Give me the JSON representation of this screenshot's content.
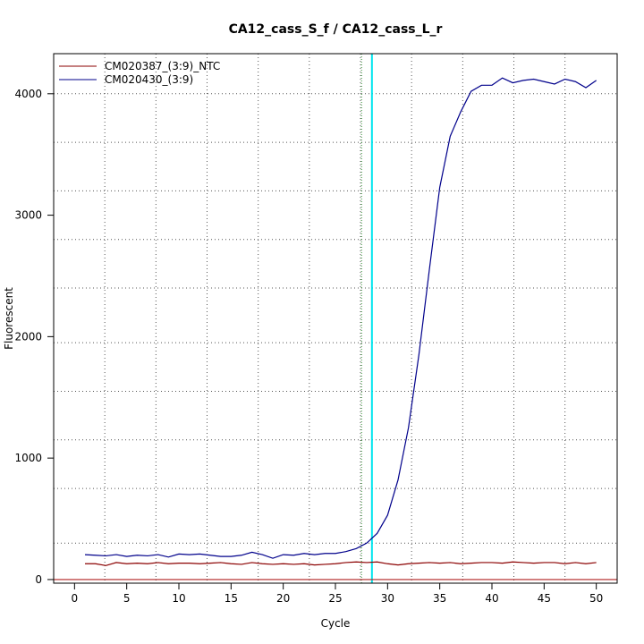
{
  "chart_data": {
    "type": "line",
    "title": "CA12_cass_S_f / CA12_cass_L_r",
    "xlabel": "Cycle",
    "ylabel": "Fluorescent",
    "xlim": [
      -2,
      52
    ],
    "ylim": [
      -30,
      4330
    ],
    "x_ticks": [
      0,
      5,
      10,
      15,
      20,
      25,
      30,
      35,
      40,
      45,
      50
    ],
    "y_ticks": [
      0,
      1000,
      2000,
      3000,
      4000
    ],
    "grid": true,
    "vertical_grid_x": [
      2.9,
      7.8,
      12.7,
      17.6,
      22.5,
      27.4,
      32.3,
      37.2,
      42.1,
      47.0
    ],
    "horizontal_grid_y": [
      300,
      750,
      1150,
      1550,
      1950,
      2400,
      2800,
      3200,
      3600,
      4000
    ],
    "threshold_x": 27.5,
    "cycle_marker_x": 28.5,
    "baseline_y": 0,
    "legend_position": "top-left",
    "x": [
      1,
      2,
      3,
      4,
      5,
      6,
      7,
      8,
      9,
      10,
      11,
      12,
      13,
      14,
      15,
      16,
      17,
      18,
      19,
      20,
      21,
      22,
      23,
      24,
      25,
      26,
      27,
      28,
      29,
      30,
      31,
      32,
      33,
      34,
      35,
      36,
      37,
      38,
      39,
      40,
      41,
      42,
      43,
      44,
      45,
      46,
      47,
      48,
      49,
      50
    ],
    "series": [
      {
        "name": "CM020387_(3:9)_NTC",
        "color": "#8b0000",
        "values": [
          130,
          130,
          115,
          140,
          130,
          135,
          130,
          140,
          130,
          135,
          135,
          130,
          135,
          140,
          130,
          125,
          140,
          130,
          125,
          130,
          125,
          130,
          120,
          125,
          130,
          140,
          145,
          140,
          145,
          130,
          120,
          130,
          135,
          140,
          135,
          140,
          130,
          135,
          140,
          140,
          135,
          145,
          140,
          135,
          140,
          140,
          130,
          140,
          130,
          140
        ]
      },
      {
        "name": "CM020430_(3:9)",
        "color": "#00008b",
        "values": [
          205,
          200,
          195,
          205,
          190,
          200,
          195,
          205,
          185,
          210,
          205,
          210,
          200,
          190,
          190,
          200,
          225,
          205,
          175,
          205,
          200,
          215,
          205,
          215,
          215,
          230,
          255,
          300,
          380,
          530,
          820,
          1250,
          1850,
          2550,
          3230,
          3650,
          3850,
          4020,
          4070,
          4070,
          4130,
          4090,
          4110,
          4120,
          4100,
          4080,
          4120,
          4100,
          4050,
          4110
        ]
      }
    ]
  }
}
